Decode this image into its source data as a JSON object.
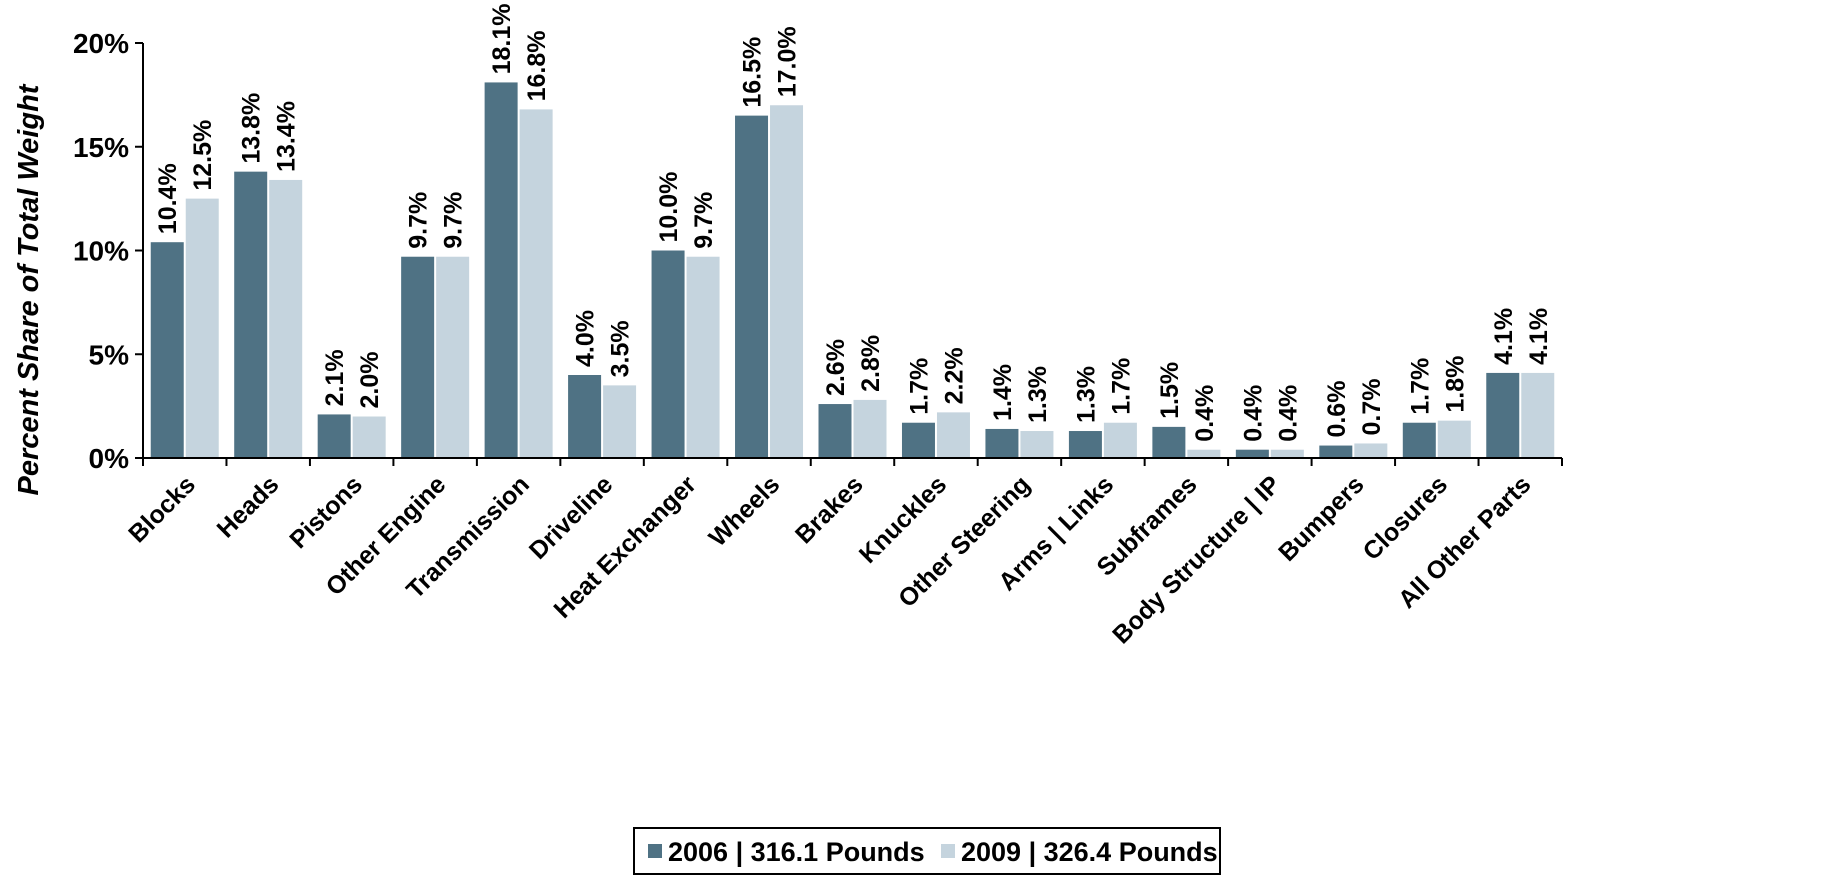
{
  "chart_data": {
    "type": "bar",
    "title": "",
    "xlabel": "",
    "ylabel": "Percent Share of Total Weight",
    "ylim": [
      0,
      20
    ],
    "yticks": [
      0,
      5,
      10,
      15,
      20
    ],
    "ytick_labels": [
      "0%",
      "5%",
      "10%",
      "15%",
      "20%"
    ],
    "grid": false,
    "legend_position": "bottom-center",
    "categories": [
      "Blocks",
      "Heads",
      "Pistons",
      "Other Engine",
      "Transmission",
      "Driveline",
      "Heat Exchanger",
      "Wheels",
      "Brakes",
      "Knuckles",
      "Other Steering",
      "Arms | Links",
      "Subframes",
      "Body Structure | IP",
      "Bumpers",
      "Closures",
      "All Other Parts"
    ],
    "series": [
      {
        "name": "2006 | 316.1 Pounds",
        "color": "#4F7284",
        "values": [
          10.4,
          13.8,
          2.1,
          9.7,
          18.1,
          4.0,
          10.0,
          16.5,
          2.6,
          1.7,
          1.4,
          1.3,
          1.5,
          0.4,
          0.6,
          1.7,
          4.1
        ],
        "labels": [
          "10.4%",
          "13.8%",
          "2.1%",
          "9.7%",
          "18.1%",
          "4.0%",
          "10.0%",
          "16.5%",
          "2.6%",
          "1.7%",
          "1.4%",
          "1.3%",
          "1.5%",
          "0.4%",
          "0.6%",
          "1.7%",
          "4.1%"
        ]
      },
      {
        "name": "2009 | 326.4 Pounds",
        "color": "#C5D4DE",
        "values": [
          12.5,
          13.4,
          2.0,
          9.7,
          16.8,
          3.5,
          9.7,
          17.0,
          2.8,
          2.2,
          1.3,
          1.7,
          0.4,
          0.4,
          0.7,
          1.8,
          4.1
        ],
        "labels": [
          "12.5%",
          "13.4%",
          "2.0%",
          "9.7%",
          "16.8%",
          "3.5%",
          "9.7%",
          "17.0%",
          "2.8%",
          "2.2%",
          "1.3%",
          "1.7%",
          "0.4%",
          "0.4%",
          "0.7%",
          "1.8%",
          "4.1%"
        ]
      }
    ]
  }
}
